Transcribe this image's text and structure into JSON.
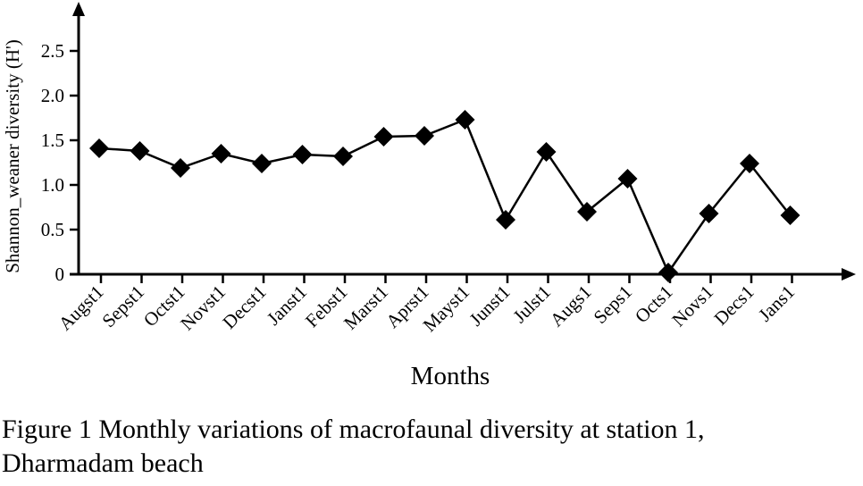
{
  "chart_data": {
    "type": "line",
    "title": "",
    "xlabel": "Months",
    "ylabel": "Shannon_weaner diversity (H')",
    "ylim": [
      0,
      2.75
    ],
    "yticks": [
      "0",
      "0.5",
      "1.0",
      "1.5",
      "2.0",
      "2.5"
    ],
    "ytick_values": [
      0,
      0.5,
      1.0,
      1.5,
      2.0,
      2.5
    ],
    "grid": false,
    "legend": "none",
    "marker": "diamond",
    "line_color": "#000000",
    "categories": [
      "Augst1",
      "Sepst1",
      "Octst1",
      "Novst1",
      "Decst1",
      "Janst1",
      "Febst1",
      "Marst1",
      "Aprst1",
      "Mayst1",
      "Junst1",
      "Julst1",
      "Augs1",
      "Seps1",
      "Octs1",
      "Novs1",
      "Decs1",
      "Jans1"
    ],
    "series": [
      {
        "name": "Shannon_weaner diversity (H')",
        "values": [
          1.41,
          1.38,
          1.19,
          1.35,
          1.24,
          1.34,
          1.32,
          1.54,
          1.55,
          1.73,
          0.61,
          1.37,
          0.7,
          1.07,
          0.02,
          0.68,
          1.24,
          0.66
        ]
      }
    ]
  },
  "caption": {
    "line1": "Figure 1 Monthly variations of macrofaunal diversity at station 1,",
    "line2": "Dharmadam beach"
  }
}
